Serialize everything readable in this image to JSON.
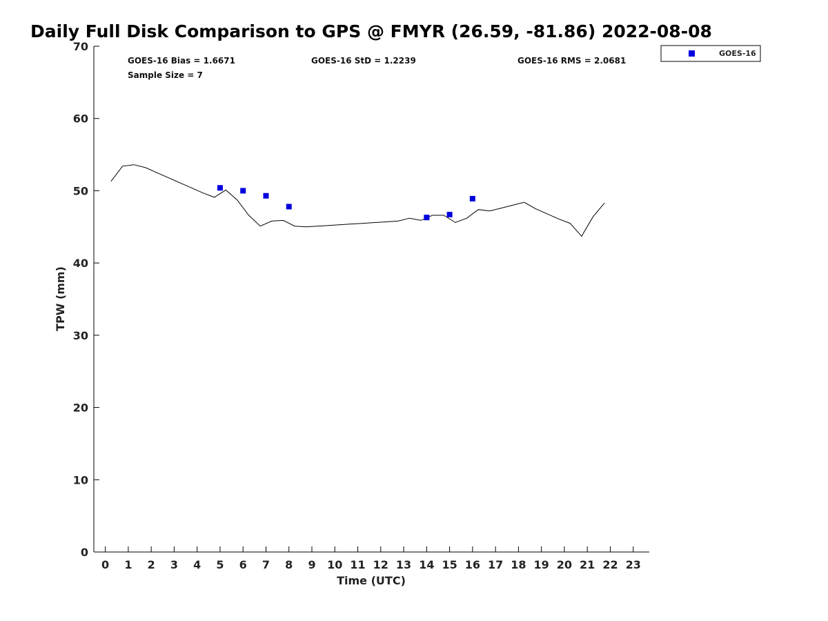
{
  "chart_data": {
    "type": "scatter",
    "title": "Daily Full Disk Comparison to GPS @ FMYR (26.59, -81.86) 2022-08-08",
    "xlabel": "Time (UTC)",
    "ylabel": "TPW (mm)",
    "xlim": [
      -0.5,
      23.7
    ],
    "ylim": [
      0,
      70
    ],
    "xticks": [
      0,
      1,
      2,
      3,
      4,
      5,
      6,
      7,
      8,
      9,
      10,
      11,
      12,
      13,
      14,
      15,
      16,
      17,
      18,
      19,
      20,
      21,
      22,
      23
    ],
    "yticks": [
      0,
      10,
      20,
      30,
      40,
      50,
      60,
      70
    ],
    "grid": false,
    "legend_position": "top-right",
    "stats": {
      "bias": "GOES-16 Bias = 1.6671",
      "std": "GOES-16 StD = 1.2239",
      "rms": "GOES-16 RMS = 2.0681",
      "sample": "Sample Size = 7"
    },
    "series": [
      {
        "kind": "line",
        "color": "#000000",
        "x": [
          0.25,
          0.75,
          1.25,
          1.75,
          2.25,
          2.75,
          3.25,
          3.75,
          4.25,
          4.75,
          5.25,
          5.75,
          6.25,
          6.75,
          7.25,
          7.75,
          8.25,
          8.75,
          9.25,
          9.75,
          10.25,
          10.75,
          11.25,
          11.75,
          12.25,
          12.75,
          13.25,
          13.75,
          14.25,
          14.75,
          15.25,
          15.75,
          16.25,
          16.75,
          17.25,
          17.75,
          18.25,
          18.75,
          19.25,
          19.75,
          20.25,
          20.75,
          21.25,
          21.75
        ],
        "y": [
          51.3,
          53.4,
          53.6,
          53.2,
          52.5,
          51.8,
          51.1,
          50.4,
          49.7,
          49.1,
          50.1,
          48.7,
          46.6,
          45.1,
          45.8,
          45.9,
          45.1,
          45.0,
          45.1,
          45.2,
          45.3,
          45.4,
          45.5,
          45.6,
          45.7,
          45.8,
          46.2,
          45.9,
          46.6,
          46.6,
          45.6,
          46.2,
          47.4,
          47.2,
          47.6,
          48.0,
          48.4,
          47.5,
          46.8,
          46.1,
          45.5,
          43.7,
          46.4,
          48.3
        ]
      },
      {
        "kind": "scatter",
        "name": "GOES-16",
        "color": "#0000dd",
        "marker": "square",
        "x": [
          5,
          6,
          7,
          8,
          14,
          15,
          16
        ],
        "y": [
          50.4,
          50.0,
          49.3,
          47.8,
          46.3,
          46.7,
          48.9
        ]
      }
    ]
  }
}
